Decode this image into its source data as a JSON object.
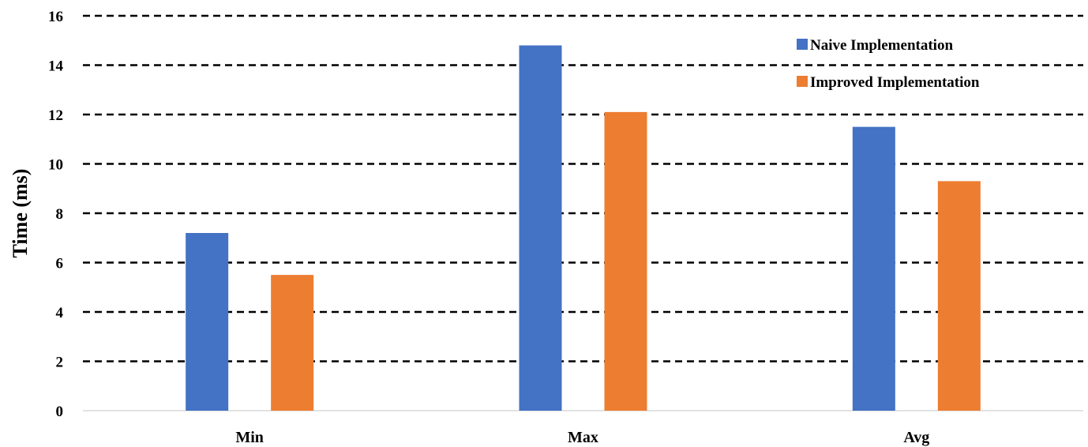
{
  "chart_data": {
    "type": "bar",
    "title": "",
    "xlabel": "",
    "ylabel": "Time (ms)",
    "categories": [
      "Min",
      "Max",
      "Avg"
    ],
    "series": [
      {
        "name": "Naive Implementation",
        "color": "#4472C4",
        "values": [
          7.2,
          14.8,
          11.5
        ]
      },
      {
        "name": "Improved Implementation",
        "color": "#ED7D31",
        "values": [
          5.5,
          12.1,
          9.3
        ]
      }
    ],
    "ylim": [
      0,
      16
    ],
    "yticks": [
      "0",
      "2",
      "4",
      "6",
      "8",
      "10",
      "12",
      "14",
      "16"
    ],
    "grid": true,
    "legend_position": "top-right"
  }
}
